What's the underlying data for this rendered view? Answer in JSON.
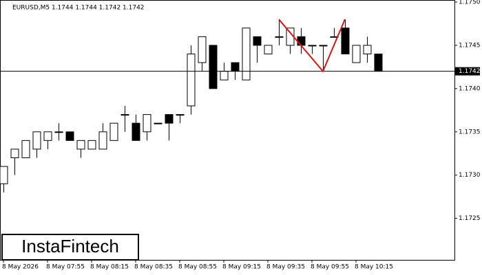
{
  "chart_data": {
    "type": "candlestick",
    "title": "EURUSD,M5  1.1744 1.1744 1.1742 1.1742",
    "watermark": "InstaFintech",
    "categories": [
      "8 May 2026",
      null,
      null,
      null,
      "8 May 07:55",
      null,
      null,
      null,
      "8 May 08:15",
      null,
      null,
      null,
      "8 May 08:35",
      null,
      null,
      null,
      "8 May 08:55",
      null,
      null,
      null,
      "8 May 09:15",
      null,
      null,
      null,
      "8 May 09:35",
      null,
      null,
      null,
      "8 May 09:55",
      null,
      null,
      null,
      "8 May 10:15",
      null,
      null
    ],
    "open": [
      1.1729,
      1.1732,
      1.1732,
      1.1733,
      1.1734,
      1.1735,
      1.1735,
      1.1733,
      1.1733,
      1.1733,
      1.1734,
      1.1737,
      1.1736,
      1.1735,
      1.1736,
      1.1737,
      1.1737,
      1.1738,
      1.1743,
      1.1745,
      1.1741,
      1.1743,
      1.1741,
      1.1746,
      1.1744,
      1.1746,
      1.1745,
      1.1746,
      1.1745,
      1.1745,
      1.1746,
      1.1747,
      1.1743,
      1.1744,
      1.1744
    ],
    "high": [
      1.1731,
      1.1733,
      1.1734,
      1.1735,
      1.1735,
      1.1736,
      1.1735,
      1.1734,
      1.1734,
      1.1736,
      1.1736,
      1.1738,
      1.1737,
      1.1737,
      1.1736,
      1.1737,
      1.1737,
      1.1745,
      1.1746,
      1.1745,
      1.1743,
      1.1743,
      1.1747,
      1.1746,
      1.1745,
      1.1748,
      1.1747,
      1.1747,
      1.1745,
      1.1745,
      1.1747,
      1.1748,
      1.1745,
      1.1746,
      1.1744
    ],
    "low": [
      1.1728,
      1.173,
      1.1732,
      1.1732,
      1.1733,
      1.1734,
      1.1734,
      1.1732,
      1.1733,
      1.1733,
      1.1734,
      1.1735,
      1.1734,
      1.1734,
      1.1736,
      1.1734,
      1.1736,
      1.1737,
      1.1742,
      1.174,
      1.1741,
      1.1741,
      1.1741,
      1.1743,
      1.1744,
      1.1745,
      1.1744,
      1.1744,
      1.1744,
      1.1742,
      1.1746,
      1.1744,
      1.1743,
      1.1743,
      1.1742
    ],
    "close": [
      1.1731,
      1.1733,
      1.1734,
      1.1735,
      1.1735,
      1.1735,
      1.1734,
      1.1734,
      1.1734,
      1.1735,
      1.1736,
      1.1737,
      1.1734,
      1.1737,
      1.1736,
      1.1736,
      1.1737,
      1.1744,
      1.1746,
      1.174,
      1.1742,
      1.1742,
      1.1747,
      1.1745,
      1.1745,
      1.1746,
      1.1747,
      1.1745,
      1.1745,
      1.1745,
      1.1746,
      1.1744,
      1.1745,
      1.1745,
      1.1742
    ],
    "current_price": 1.1742,
    "pattern": {
      "color": "#e01010",
      "points": [
        {
          "index": 25,
          "value": 1.1748
        },
        {
          "index": 29,
          "value": 1.1742
        },
        {
          "index": 31,
          "value": 1.1748
        }
      ]
    },
    "ylim": [
      1.17202,
      1.175
    ],
    "yticks": [
      {
        "value": 1.175,
        "label": "1.1750"
      },
      1.1745,
      {
        "value": 1.174,
        "label": "1.1740"
      },
      1.1735,
      {
        "value": 1.173,
        "label": "1.1730"
      },
      1.1725
    ]
  }
}
